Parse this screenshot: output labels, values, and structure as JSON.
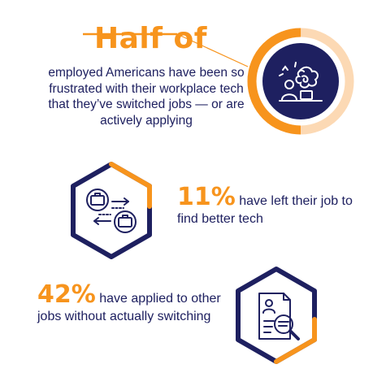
{
  "header": {
    "headline": "Half of",
    "intro": "employed Americans have been so frustrated with their workplace tech that they’ve switched jobs — or are actively applying"
  },
  "stats": [
    {
      "value": "11%",
      "text": " have left their job to find better tech"
    },
    {
      "value": "42%",
      "text": " have applied to other jobs without actually switching"
    }
  ],
  "ring": {
    "fraction": 0.5
  },
  "colors": {
    "accent": "#f7941d",
    "navy": "#1e2060",
    "ring_light": "#fcd9b4"
  },
  "icons": [
    "frustrated-worker-icon",
    "job-switch-briefcase-icon",
    "document-search-icon"
  ]
}
